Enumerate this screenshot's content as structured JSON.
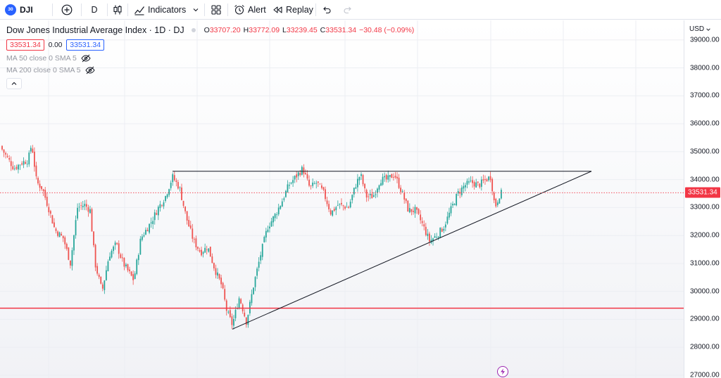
{
  "toolbar": {
    "symbol_badge": "30",
    "symbol": "DJI",
    "interval": "D",
    "indicators_label": "Indicators",
    "alert_label": "Alert",
    "replay_label": "Replay"
  },
  "legend": {
    "title": "Dow Jones Industrial Average Index · 1D · DJ",
    "open_key": "O",
    "open": "33707.20",
    "high_key": "H",
    "high": "33772.09",
    "low_key": "L",
    "low": "33239.45",
    "close_key": "C",
    "close": "33531.34",
    "change": "−30.48 (−0.09%)",
    "sell_price": "33531.34",
    "spread": "0.00",
    "buy_price": "33531.34",
    "ma50": "MA 50 close 0 SMA 5",
    "ma200": "MA 200 close 0 SMA 5"
  },
  "price_axis": {
    "currency": "USD",
    "ticks": [
      "39000.00",
      "38000.00",
      "37000.00",
      "36000.00",
      "35000.00",
      "34000.00",
      "33000.00",
      "32000.00",
      "31000.00",
      "30000.00",
      "29000.00",
      "28000.00",
      "27000.00"
    ],
    "last_price": "33531.34"
  },
  "colors": {
    "up": "#26a69a",
    "down": "#ef5350",
    "support_line": "#f23645",
    "trend_line": "#131722",
    "accent": "#2962ff"
  },
  "drawings": {
    "horizontal_support_price": 29400,
    "resistance_price": 34300,
    "last_price_line": 33531.34
  },
  "chart_data": {
    "type": "candlestick",
    "symbol": "DJI",
    "interval": "1D",
    "ylim": [
      26900,
      39700
    ],
    "close_path": [
      [
        0,
        35200
      ],
      [
        10,
        34800
      ],
      [
        20,
        34400
      ],
      [
        30,
        34600
      ],
      [
        40,
        34700
      ],
      [
        45,
        35300
      ],
      [
        52,
        33900
      ],
      [
        60,
        33700
      ],
      [
        70,
        32900
      ],
      [
        78,
        32200
      ],
      [
        90,
        31900
      ],
      [
        100,
        31000
      ],
      [
        110,
        33000
      ],
      [
        120,
        33100
      ],
      [
        128,
        32900
      ],
      [
        135,
        31000
      ],
      [
        145,
        30000
      ],
      [
        155,
        31300
      ],
      [
        165,
        31700
      ],
      [
        175,
        31000
      ],
      [
        190,
        30400
      ],
      [
        200,
        31900
      ],
      [
        215,
        32500
      ],
      [
        225,
        33000
      ],
      [
        235,
        33400
      ],
      [
        245,
        34100
      ],
      [
        255,
        33700
      ],
      [
        265,
        32600
      ],
      [
        275,
        31800
      ],
      [
        285,
        31400
      ],
      [
        295,
        31600
      ],
      [
        305,
        30800
      ],
      [
        315,
        30200
      ],
      [
        322,
        29300
      ],
      [
        330,
        28800
      ],
      [
        340,
        29800
      ],
      [
        350,
        28900
      ],
      [
        360,
        30200
      ],
      [
        370,
        31300
      ],
      [
        380,
        32300
      ],
      [
        390,
        32700
      ],
      [
        400,
        33200
      ],
      [
        410,
        33800
      ],
      [
        420,
        34100
      ],
      [
        430,
        34400
      ],
      [
        440,
        33700
      ],
      [
        450,
        33900
      ],
      [
        460,
        33500
      ],
      [
        470,
        32800
      ],
      [
        480,
        33100
      ],
      [
        495,
        33000
      ],
      [
        505,
        33800
      ],
      [
        512,
        34200
      ],
      [
        520,
        33400
      ],
      [
        530,
        33400
      ],
      [
        540,
        34000
      ],
      [
        550,
        34000
      ],
      [
        560,
        34200
      ],
      [
        570,
        33600
      ],
      [
        580,
        32900
      ],
      [
        590,
        32900
      ],
      [
        600,
        32400
      ],
      [
        610,
        31800
      ],
      [
        620,
        32000
      ],
      [
        630,
        32300
      ],
      [
        640,
        32900
      ],
      [
        650,
        33500
      ],
      [
        660,
        33800
      ],
      [
        670,
        33900
      ],
      [
        680,
        33800
      ],
      [
        690,
        34000
      ],
      [
        697,
        34100
      ],
      [
        703,
        33000
      ],
      [
        710,
        33500
      ],
      [
        715,
        33530
      ]
    ]
  }
}
